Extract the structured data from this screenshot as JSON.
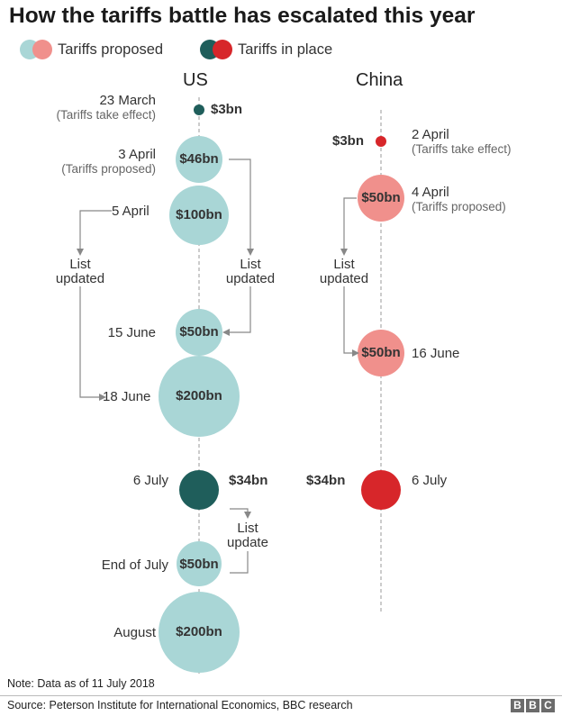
{
  "title": "How the tariffs battle has escalated this year",
  "legend": {
    "proposed": "Tariffs proposed",
    "in_place": "Tariffs in place"
  },
  "colors": {
    "us_proposed": "#a9d6d6",
    "us_in_place": "#1f5e5b",
    "china_proposed": "#f0908c",
    "china_in_place": "#d7262a",
    "arrow": "#888888"
  },
  "columns": {
    "us": "US",
    "china": "China"
  },
  "us_events": [
    {
      "date": "23 March",
      "note": "(Tariffs take effect)",
      "amount": "$3bn",
      "value_bn": 3,
      "status": "in_place"
    },
    {
      "date": "3 April",
      "note": "(Tariffs proposed)",
      "amount": "$46bn",
      "value_bn": 46,
      "status": "proposed"
    },
    {
      "date": "5 April",
      "amount": "$100bn",
      "value_bn": 100,
      "status": "proposed"
    },
    {
      "date": "15 June",
      "amount": "$50bn",
      "value_bn": 50,
      "status": "proposed"
    },
    {
      "date": "18 June",
      "amount": "$200bn",
      "value_bn": 200,
      "status": "proposed"
    },
    {
      "date": "6 July",
      "amount": "$34bn",
      "value_bn": 34,
      "status": "in_place"
    },
    {
      "date": "End of July",
      "amount": "$50bn",
      "value_bn": 50,
      "status": "proposed"
    },
    {
      "date": "August",
      "amount": "$200bn",
      "value_bn": 200,
      "status": "proposed"
    }
  ],
  "china_events": [
    {
      "date": "2 April",
      "note": "(Tariffs take effect)",
      "amount": "$3bn",
      "value_bn": 3,
      "status": "in_place"
    },
    {
      "date": "4 April",
      "note": "(Tariffs proposed)",
      "amount": "$50bn",
      "value_bn": 50,
      "status": "proposed"
    },
    {
      "date": "16 June",
      "amount": "$50bn",
      "value_bn": 50,
      "status": "proposed"
    },
    {
      "date": "6 July",
      "amount": "$34bn",
      "value_bn": 34,
      "status": "in_place"
    }
  ],
  "arrow_labels": {
    "us_left_1": "List",
    "us_left_2": "updated",
    "us_right_1": "List",
    "us_right_2": "updated",
    "china_1": "List",
    "china_2": "updated",
    "us_july_1": "List",
    "us_july_2": "update"
  },
  "note": "Note: Data as of 11 July 2018",
  "source": "Source: Peterson Institute for International Economics, BBC research",
  "logo": [
    "B",
    "B",
    "C"
  ]
}
